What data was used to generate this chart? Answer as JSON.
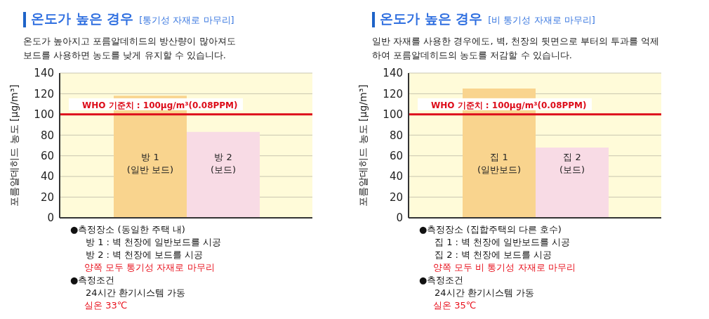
{
  "chart_data": [
    {
      "type": "bar",
      "title": "온도가 높은 경우",
      "subtitle": "[통기성 자재로 마무리]",
      "ylabel": "포름알데히드 농도 [μg/m³]",
      "categories": [
        "방 1\n(일반 보드)",
        "방 2\n(보드)"
      ],
      "values": [
        118,
        83
      ],
      "colors": [
        "#f9d48e",
        "#f8dbe5"
      ],
      "ylim": [
        0,
        140
      ],
      "yticks": [
        0,
        20,
        40,
        60,
        80,
        100,
        120,
        140
      ],
      "grid": "y",
      "ref_lines": [
        {
          "axis": "y",
          "value": 100,
          "label": "WHO 기준치 : 100μg/m³(0.08PPM)",
          "color": "#dd0d1a"
        }
      ],
      "annotations": [
        "온도가 높아지고 포름알데히드의 방산량이 많아져도",
        "보드를 사용하면 농도를 낮게 유지할 수 있습니다.",
        "●측정장소 (동일한 주택 내)",
        "방 1 : 벽 천장에 일반보드를 시공",
        "방 2 : 벽 천장에 보드를 시공",
        "양쪽 모두 통기성 자재로 마무리",
        "●측정조건",
        "24시간 환기시스템 가동",
        "실온 33℃"
      ]
    },
    {
      "type": "bar",
      "title": "온도가 높은 경우",
      "subtitle": "[비 통기성 자재로 마무리]",
      "ylabel": "포름알데히드 농도 [μg/m³]",
      "categories": [
        "집 1\n(일반보드)",
        "집 2\n(보드)"
      ],
      "values": [
        125,
        68
      ],
      "colors": [
        "#f9d48e",
        "#f8dbe5"
      ],
      "ylim": [
        0,
        140
      ],
      "yticks": [
        0,
        20,
        40,
        60,
        80,
        100,
        120,
        140
      ],
      "grid": "y",
      "ref_lines": [
        {
          "axis": "y",
          "value": 100,
          "label": "WHO 기준치 : 100μg/m³(0.08PPM)",
          "color": "#dd0d1a"
        }
      ],
      "annotations": [
        "일반 자재를 사용한 경우에도, 벽, 천장의 뒷면으로 부터의 투과를 억제",
        "하여 포름알데히드의 농도를 저감할 수 있습니다.",
        "●측정장소 (집합주택의 다른 호수)",
        "집 1 : 벽  천장에 일반보드를 시공",
        "집 2 : 벽  천장에 보드를 시공",
        "양쪽 모두 비 통기성 자재로 마무리",
        "●측정조건",
        "24시간 환기시스템 가동",
        "실온 35℃"
      ]
    }
  ]
}
